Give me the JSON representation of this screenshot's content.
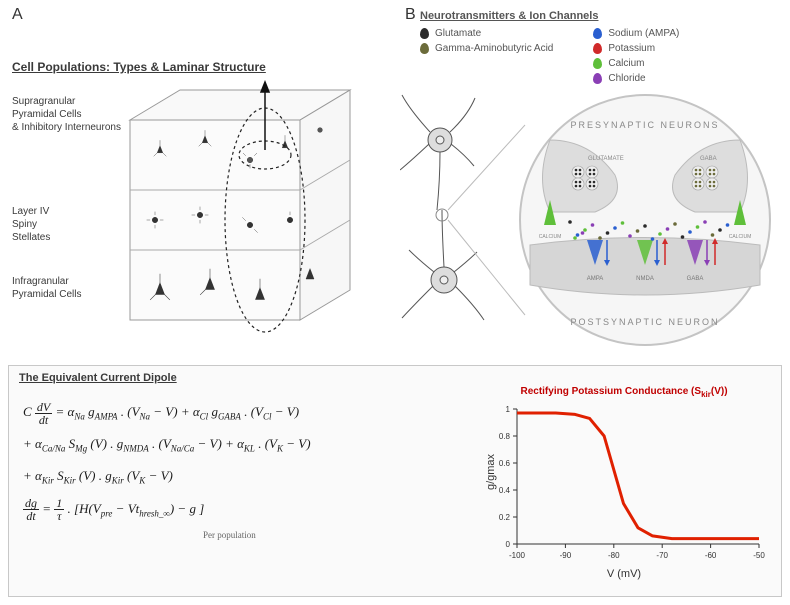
{
  "panelLabels": {
    "A": "A",
    "B": "B"
  },
  "panelA": {
    "title": "Cell Populations: Types & Laminar Structure",
    "labels": {
      "supra": "Supragranular\nPyramidal Cells\n& Inhibitory Interneurons",
      "layer4": "Layer IV\nSpiny\nStellates",
      "infra": "Infragranular\nPyramidal Cells"
    }
  },
  "panelB": {
    "title": "Neurotransmitters & Ion Channels",
    "legend": {
      "col1": [
        {
          "label": "Glutamate",
          "color": "#2b2b2b"
        },
        {
          "label": "Gamma-Aminobutyric Acid",
          "color": "#6b6b3a"
        }
      ],
      "col2": [
        {
          "label": "Sodium (AMPA)",
          "color": "#2a5fd0"
        },
        {
          "label": "Potassium",
          "color": "#d02a2a"
        },
        {
          "label": "Calcium",
          "color": "#5fbf3a"
        },
        {
          "label": "Chloride",
          "color": "#8a3fb5"
        }
      ]
    },
    "synapse": {
      "pre": "PRESYNAPTIC NEURONS",
      "post": "POSTSYNAPTIC NEURON",
      "receptors": [
        "AMPA",
        "NMDA",
        "GABA"
      ],
      "nt_left": "GLUTAMATE",
      "nt_right": "GABA",
      "calcium": "CALCIUM"
    }
  },
  "dipole": {
    "title": "The Equivalent Current Dipole",
    "eq1_pre": "C",
    "eq1_frac_num": "dV",
    "eq1_frac_den": "dt",
    "eq1_rest": " = α",
    "eq1_sub1": "Na",
    "eq1_g1": " g",
    "eq1_sub2": "AMPA",
    "eq1_mid": " . (V",
    "eq1_sub3": "Na",
    "eq1_mid2": " − V)  +  α",
    "eq1_sub4": "Cl",
    "eq1_g2": " g",
    "eq1_sub5": "GABA",
    "eq1_mid3": " . (V",
    "eq1_sub6": "Cl",
    "eq1_end": " − V)",
    "eq2_pre": "+  α",
    "eq2_sub1": "Ca/Na",
    "eq2_s": "  S",
    "eq2_sub2": "Mg",
    "eq2_mid": " (V) . g",
    "eq2_sub3": "NMDA",
    "eq2_mid2": " . (V",
    "eq2_sub4": "Na/Ca",
    "eq2_mid3": " − V)  +   α",
    "eq2_sub5": "KL",
    "eq2_mid4": " . (V",
    "eq2_sub6": "K",
    "eq2_end": " − V)",
    "eq3_pre": "+  α",
    "eq3_sub1": "Kir",
    "eq3_s": "  S",
    "eq3_sub2": "Kir",
    "eq3_mid": " (V) . g",
    "eq3_sub3": "Kir",
    "eq3_mid2": " (V",
    "eq3_sub4": "K",
    "eq3_end": " − V)",
    "eq4_frac_num": "dg",
    "eq4_frac_den": "dt",
    "eq4_eq": " = ",
    "eq4_frac2_num": "1",
    "eq4_frac2_den": "τ",
    "eq4_rest": " . [H(V",
    "eq4_sub1": "pre",
    "eq4_mid": " − Vt",
    "eq4_sub2": "hresh_∞",
    "eq4_end": ")  − g ]",
    "per_population": "Per population"
  },
  "chart": {
    "title_pre": "Rectifying Potassium Conductance  (S",
    "title_sub": "kir",
    "title_post": "(V))",
    "xlabel": "V (mV)",
    "ylabel": "g/gmax",
    "line_color": "#e02000",
    "line_width": 3,
    "background": "#fafafa",
    "xlim": [
      -100,
      -50
    ],
    "ylim": [
      0,
      1
    ],
    "xticks": [
      -100,
      -90,
      -80,
      -70,
      -60,
      -50
    ],
    "yticks": [
      0,
      0.2,
      0.4,
      0.6,
      0.8,
      1
    ],
    "curve": [
      {
        "x": -100,
        "y": 0.97
      },
      {
        "x": -92,
        "y": 0.97
      },
      {
        "x": -88,
        "y": 0.96
      },
      {
        "x": -85,
        "y": 0.93
      },
      {
        "x": -82,
        "y": 0.8
      },
      {
        "x": -80,
        "y": 0.55
      },
      {
        "x": -78,
        "y": 0.3
      },
      {
        "x": -75,
        "y": 0.12
      },
      {
        "x": -72,
        "y": 0.06
      },
      {
        "x": -68,
        "y": 0.04
      },
      {
        "x": -60,
        "y": 0.04
      },
      {
        "x": -50,
        "y": 0.04
      }
    ]
  }
}
